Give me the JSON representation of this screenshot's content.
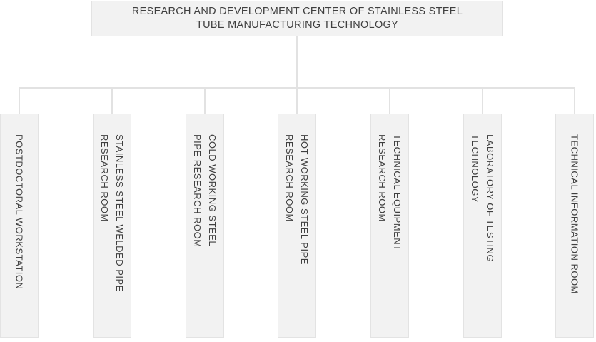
{
  "root": {
    "lines": [
      "RESEARCH AND DEVELOPMENT CENTER OF STAINLESS STEEL",
      "TUBE MANUFACTURING TECHNOLOGY"
    ]
  },
  "departments": [
    {
      "lines": [
        "POSTDOCTORAL WORKSTATION",
        ""
      ]
    },
    {
      "lines": [
        "STAINLESS STEEL WELDED PIPE",
        "RESEARCH ROOM"
      ]
    },
    {
      "lines": [
        "COLD WORKING STEEL",
        "PIPE RESEARCH ROOM"
      ]
    },
    {
      "lines": [
        "HOT WORKING STEEL PIPE",
        "RESEARCH ROOM"
      ]
    },
    {
      "lines": [
        "TECHNICAL EQUIPMENT",
        "RESEARCH ROOM"
      ]
    },
    {
      "lines": [
        "LABORATORY OF TESTING",
        "TECHNOLOGY"
      ]
    },
    {
      "lines": [
        "TECHNICAL INFORMATION ROOM",
        ""
      ]
    }
  ],
  "colors": {
    "box_fill": "#f2f2f2",
    "box_border": "#e3e3e3",
    "connector": "#e2e2e2",
    "text": "#3f3f3f",
    "background": "#ffffff"
  }
}
